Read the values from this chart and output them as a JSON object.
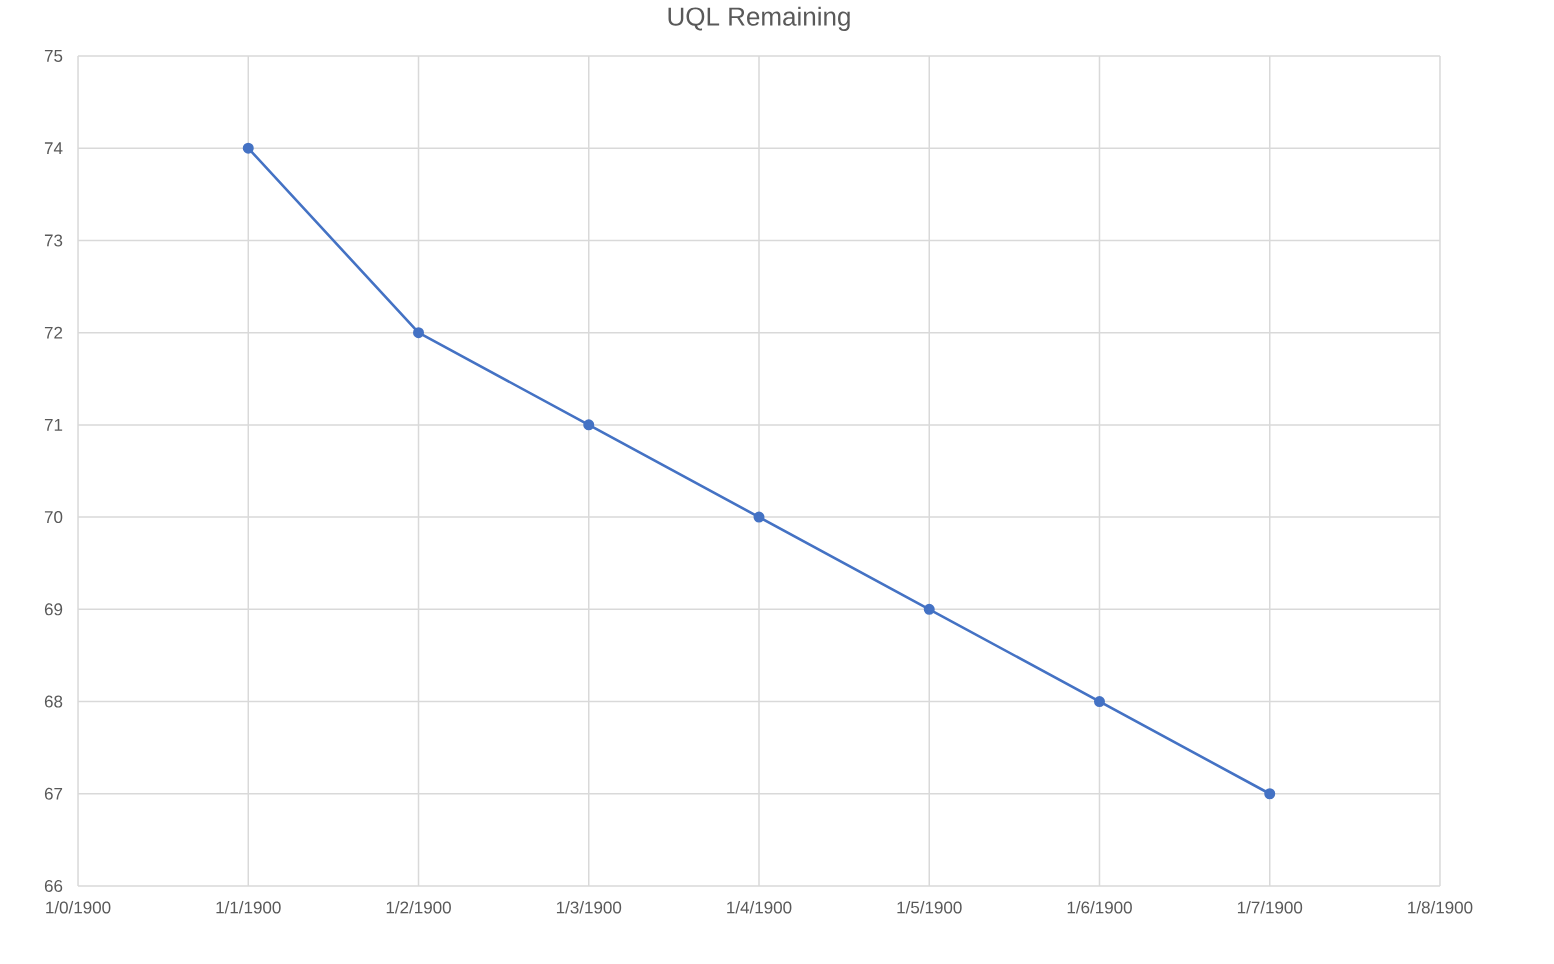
{
  "chart_data": {
    "type": "line",
    "title": "UQL Remaining",
    "categories": [
      "1/0/1900",
      "1/1/1900",
      "1/2/1900",
      "1/3/1900",
      "1/4/1900",
      "1/5/1900",
      "1/6/1900",
      "1/7/1900",
      "1/8/1900"
    ],
    "values": [
      null,
      74,
      72,
      71,
      70,
      69,
      68,
      67,
      null
    ],
    "color": "#4472c4",
    "ylim": [
      66,
      75
    ],
    "yticks": [
      66,
      67,
      68,
      69,
      70,
      71,
      72,
      73,
      74,
      75
    ],
    "grid": true,
    "marker": "circle",
    "line_style": "solid"
  }
}
